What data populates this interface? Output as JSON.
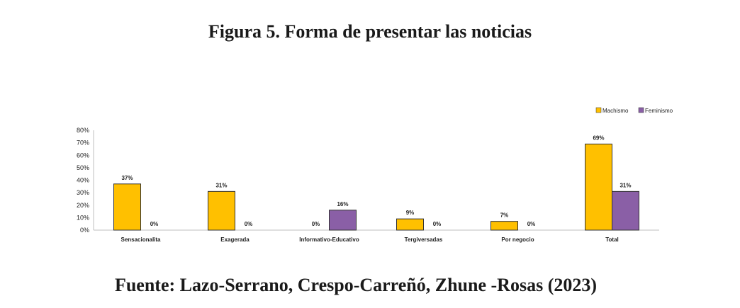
{
  "figure_title": "Figura 5. Forma de presentar las noticias",
  "source": "Fuente: Lazo-Serrano, Crespo-Carreñó, Zhune -Rosas (2023)",
  "colors": {
    "machismo": "#FFC000",
    "feminismo": "#8A5FA6",
    "bar_stroke": "#333333",
    "axis": "#bfbfbf"
  },
  "chart_data": {
    "type": "bar",
    "title": "",
    "xlabel": "",
    "ylabel": "",
    "categories": [
      "Sensacionalita",
      "Exagerada",
      "Informativo-Educativo",
      "Tergiversadas",
      "Por negocio",
      "Total"
    ],
    "series": [
      {
        "name": "Machismo",
        "values": [
          37,
          31,
          0,
          9,
          7,
          69
        ]
      },
      {
        "name": "Feminismo",
        "values": [
          0,
          0,
          16,
          0,
          0,
          31
        ]
      }
    ],
    "data_labels": [
      [
        "37%",
        "31%",
        "0%",
        "9%",
        "7%",
        "69%"
      ],
      [
        "0%",
        "0%",
        "16%",
        "0%",
        "0%",
        "31%"
      ]
    ],
    "ylim": [
      0,
      80
    ],
    "yticks": [
      "0%",
      "10%",
      "20%",
      "30%",
      "40%",
      "50%",
      "60%",
      "70%",
      "80%"
    ],
    "grid": false,
    "legend_position": "top-right"
  }
}
